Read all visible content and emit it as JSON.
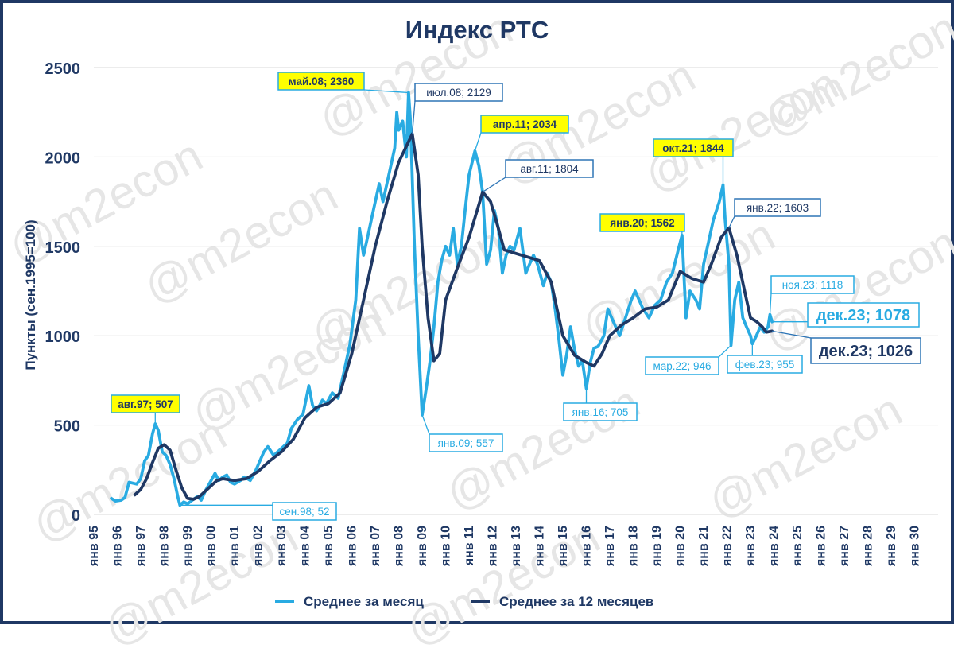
{
  "watermark": "@m2econ",
  "chart_data": {
    "type": "line",
    "title": "Индекс РТС",
    "ylabel": "Пункты (сен.1995=100)",
    "ylim": [
      0,
      2500
    ],
    "yticks": [
      "0",
      "500",
      "1000",
      "1500",
      "2000",
      "2500"
    ],
    "xlim": [
      1995,
      2031
    ],
    "xticks": [
      "янв 95",
      "янв 96",
      "янв 97",
      "янв 98",
      "янв 99",
      "янв 00",
      "янв 01",
      "янв 02",
      "янв 03",
      "янв 04",
      "янв 05",
      "янв 06",
      "янв 07",
      "янв 08",
      "янв 09",
      "янв 10",
      "янв 11",
      "янв 12",
      "янв 13",
      "янв 14",
      "янв 15",
      "янв 16",
      "янв 17",
      "янв 18",
      "янв 19",
      "янв 20",
      "янв 21",
      "янв 22",
      "янв 23",
      "янв 24",
      "янв 25",
      "янв 26",
      "янв 27",
      "янв 28",
      "янв 29",
      "янв 30"
    ],
    "grid": true,
    "legend_position": "bottom",
    "colors": {
      "monthly": "#29abe2",
      "annual": "#1f3864",
      "highlight": "#ffff00",
      "axis_text": "#1f3864"
    },
    "series": [
      {
        "name": "Среднее за месяц",
        "points": [
          [
            1995.75,
            90
          ],
          [
            1995.92,
            75
          ],
          [
            1996.17,
            80
          ],
          [
            1996.33,
            95
          ],
          [
            1996.5,
            180
          ],
          [
            1996.67,
            175
          ],
          [
            1996.83,
            170
          ],
          [
            1997.0,
            200
          ],
          [
            1997.17,
            300
          ],
          [
            1997.33,
            330
          ],
          [
            1997.5,
            450
          ],
          [
            1997.62,
            507
          ],
          [
            1997.75,
            470
          ],
          [
            1997.92,
            350
          ],
          [
            1998.08,
            330
          ],
          [
            1998.25,
            280
          ],
          [
            1998.42,
            200
          ],
          [
            1998.58,
            100
          ],
          [
            1998.67,
            52
          ],
          [
            1998.83,
            70
          ],
          [
            1999.0,
            60
          ],
          [
            1999.25,
            85
          ],
          [
            1999.42,
            100
          ],
          [
            1999.58,
            80
          ],
          [
            1999.75,
            130
          ],
          [
            1999.92,
            170
          ],
          [
            2000.17,
            230
          ],
          [
            2000.33,
            190
          ],
          [
            2000.5,
            210
          ],
          [
            2000.67,
            220
          ],
          [
            2000.83,
            180
          ],
          [
            2001.0,
            170
          ],
          [
            2001.25,
            190
          ],
          [
            2001.42,
            210
          ],
          [
            2001.67,
            190
          ],
          [
            2001.92,
            250
          ],
          [
            2002.25,
            350
          ],
          [
            2002.42,
            380
          ],
          [
            2002.67,
            330
          ],
          [
            2002.92,
            360
          ],
          [
            2003.25,
            400
          ],
          [
            2003.42,
            480
          ],
          [
            2003.67,
            530
          ],
          [
            2003.92,
            560
          ],
          [
            2004.17,
            720
          ],
          [
            2004.33,
            610
          ],
          [
            2004.5,
            580
          ],
          [
            2004.75,
            640
          ],
          [
            2004.92,
            620
          ],
          [
            2005.17,
            680
          ],
          [
            2005.42,
            650
          ],
          [
            2005.67,
            800
          ],
          [
            2005.92,
            950
          ],
          [
            2006.17,
            1200
          ],
          [
            2006.33,
            1600
          ],
          [
            2006.5,
            1450
          ],
          [
            2006.67,
            1550
          ],
          [
            2006.92,
            1700
          ],
          [
            2007.17,
            1850
          ],
          [
            2007.33,
            1750
          ],
          [
            2007.58,
            1900
          ],
          [
            2007.83,
            2050
          ],
          [
            2007.92,
            2250
          ],
          [
            2008.0,
            2150
          ],
          [
            2008.17,
            2200
          ],
          [
            2008.33,
            2000
          ],
          [
            2008.42,
            2360
          ],
          [
            2008.5,
            2200
          ],
          [
            2008.67,
            1500
          ],
          [
            2008.83,
            1000
          ],
          [
            2009.0,
            557
          ],
          [
            2009.17,
            700
          ],
          [
            2009.33,
            850
          ],
          [
            2009.5,
            1050
          ],
          [
            2009.67,
            1300
          ],
          [
            2009.83,
            1420
          ],
          [
            2010.0,
            1500
          ],
          [
            2010.17,
            1450
          ],
          [
            2010.33,
            1600
          ],
          [
            2010.5,
            1400
          ],
          [
            2010.67,
            1500
          ],
          [
            2010.83,
            1700
          ],
          [
            2011.0,
            1900
          ],
          [
            2011.25,
            2034
          ],
          [
            2011.42,
            1950
          ],
          [
            2011.58,
            1800
          ],
          [
            2011.75,
            1400
          ],
          [
            2011.92,
            1480
          ],
          [
            2012.08,
            1700
          ],
          [
            2012.25,
            1600
          ],
          [
            2012.42,
            1350
          ],
          [
            2012.58,
            1450
          ],
          [
            2012.75,
            1500
          ],
          [
            2012.92,
            1480
          ],
          [
            2013.17,
            1600
          ],
          [
            2013.42,
            1350
          ],
          [
            2013.58,
            1400
          ],
          [
            2013.75,
            1450
          ],
          [
            2013.92,
            1400
          ],
          [
            2014.17,
            1280
          ],
          [
            2014.33,
            1350
          ],
          [
            2014.5,
            1300
          ],
          [
            2014.67,
            1150
          ],
          [
            2014.83,
            980
          ],
          [
            2015.0,
            780
          ],
          [
            2015.17,
            900
          ],
          [
            2015.33,
            1050
          ],
          [
            2015.5,
            920
          ],
          [
            2015.67,
            830
          ],
          [
            2015.83,
            860
          ],
          [
            2016.0,
            705
          ],
          [
            2016.17,
            850
          ],
          [
            2016.33,
            930
          ],
          [
            2016.5,
            940
          ],
          [
            2016.75,
            1000
          ],
          [
            2016.92,
            1150
          ],
          [
            2017.08,
            1100
          ],
          [
            2017.25,
            1050
          ],
          [
            2017.42,
            1000
          ],
          [
            2017.67,
            1100
          ],
          [
            2017.92,
            1200
          ],
          [
            2018.08,
            1250
          ],
          [
            2018.25,
            1200
          ],
          [
            2018.42,
            1150
          ],
          [
            2018.67,
            1100
          ],
          [
            2018.92,
            1170
          ],
          [
            2019.17,
            1200
          ],
          [
            2019.42,
            1300
          ],
          [
            2019.67,
            1350
          ],
          [
            2019.92,
            1480
          ],
          [
            2020.08,
            1562
          ],
          [
            2020.25,
            1100
          ],
          [
            2020.42,
            1250
          ],
          [
            2020.67,
            1200
          ],
          [
            2020.83,
            1150
          ],
          [
            2021.0,
            1400
          ],
          [
            2021.17,
            1500
          ],
          [
            2021.42,
            1650
          ],
          [
            2021.67,
            1750
          ],
          [
            2021.83,
            1844
          ],
          [
            2021.92,
            1650
          ],
          [
            2022.08,
            1400
          ],
          [
            2022.17,
            946
          ],
          [
            2022.33,
            1200
          ],
          [
            2022.5,
            1300
          ],
          [
            2022.67,
            1100
          ],
          [
            2022.83,
            1050
          ],
          [
            2023.0,
            1000
          ],
          [
            2023.08,
            955
          ],
          [
            2023.25,
            1000
          ],
          [
            2023.42,
            1050
          ],
          [
            2023.58,
            1020
          ],
          [
            2023.75,
            1050
          ],
          [
            2023.83,
            1118
          ],
          [
            2023.92,
            1078
          ]
        ]
      },
      {
        "name": "Среднее за 12 месяцев",
        "points": [
          [
            1996.75,
            110
          ],
          [
            1997.0,
            140
          ],
          [
            1997.25,
            200
          ],
          [
            1997.5,
            290
          ],
          [
            1997.75,
            370
          ],
          [
            1998.0,
            390
          ],
          [
            1998.25,
            360
          ],
          [
            1998.5,
            250
          ],
          [
            1998.75,
            150
          ],
          [
            1999.0,
            90
          ],
          [
            1999.25,
            85
          ],
          [
            1999.5,
            100
          ],
          [
            1999.75,
            130
          ],
          [
            2000.0,
            160
          ],
          [
            2000.25,
            190
          ],
          [
            2000.5,
            200
          ],
          [
            2000.75,
            195
          ],
          [
            2001.0,
            190
          ],
          [
            2001.5,
            200
          ],
          [
            2002.0,
            240
          ],
          [
            2002.5,
            300
          ],
          [
            2003.0,
            350
          ],
          [
            2003.5,
            420
          ],
          [
            2004.0,
            540
          ],
          [
            2004.5,
            600
          ],
          [
            2005.0,
            620
          ],
          [
            2005.5,
            680
          ],
          [
            2006.0,
            900
          ],
          [
            2006.5,
            1200
          ],
          [
            2007.0,
            1500
          ],
          [
            2007.5,
            1750
          ],
          [
            2008.0,
            1970
          ],
          [
            2008.58,
            2129
          ],
          [
            2008.83,
            1900
          ],
          [
            2009.0,
            1500
          ],
          [
            2009.25,
            1100
          ],
          [
            2009.5,
            860
          ],
          [
            2009.75,
            900
          ],
          [
            2010.0,
            1200
          ],
          [
            2010.5,
            1380
          ],
          [
            2011.0,
            1550
          ],
          [
            2011.58,
            1804
          ],
          [
            2011.92,
            1750
          ],
          [
            2012.25,
            1600
          ],
          [
            2012.5,
            1480
          ],
          [
            2013.0,
            1460
          ],
          [
            2013.5,
            1440
          ],
          [
            2014.0,
            1420
          ],
          [
            2014.5,
            1300
          ],
          [
            2015.0,
            1000
          ],
          [
            2015.5,
            890
          ],
          [
            2016.0,
            850
          ],
          [
            2016.33,
            830
          ],
          [
            2016.67,
            900
          ],
          [
            2017.0,
            1000
          ],
          [
            2017.5,
            1060
          ],
          [
            2018.0,
            1100
          ],
          [
            2018.5,
            1150
          ],
          [
            2019.0,
            1160
          ],
          [
            2019.5,
            1200
          ],
          [
            2020.0,
            1360
          ],
          [
            2020.5,
            1320
          ],
          [
            2021.0,
            1300
          ],
          [
            2021.33,
            1400
          ],
          [
            2021.75,
            1550
          ],
          [
            2022.08,
            1603
          ],
          [
            2022.42,
            1450
          ],
          [
            2022.75,
            1250
          ],
          [
            2023.0,
            1100
          ],
          [
            2023.25,
            1080
          ],
          [
            2023.5,
            1050
          ],
          [
            2023.67,
            1020
          ],
          [
            2023.92,
            1026
          ]
        ]
      }
    ],
    "annotations": [
      {
        "label": "авг.97; 507",
        "x": 1997.62,
        "y": 507,
        "series": "Среднее за месяц",
        "highlight": true,
        "size": "normal"
      },
      {
        "label": "сен.98; 52",
        "x": 1998.67,
        "y": 52,
        "series": "Среднее за месяц",
        "highlight": false,
        "size": "normal"
      },
      {
        "label": "май.08; 2360",
        "x": 2008.42,
        "y": 2360,
        "series": "Среднее за месяц",
        "highlight": true,
        "size": "normal"
      },
      {
        "label": "июл.08; 2129",
        "x": 2008.58,
        "y": 2129,
        "series": "Среднее за 12 месяцев",
        "highlight": false,
        "size": "normal"
      },
      {
        "label": "янв.09; 557",
        "x": 2009.0,
        "y": 557,
        "series": "Среднее за месяц",
        "highlight": false,
        "size": "normal"
      },
      {
        "label": "апр.11; 2034",
        "x": 2011.25,
        "y": 2034,
        "series": "Среднее за месяц",
        "highlight": true,
        "size": "normal"
      },
      {
        "label": "авг.11; 1804",
        "x": 2011.58,
        "y": 1804,
        "series": "Среднее за 12 месяцев",
        "highlight": false,
        "size": "normal"
      },
      {
        "label": "янв.16; 705",
        "x": 2016.0,
        "y": 705,
        "series": "Среднее за месяц",
        "highlight": false,
        "size": "normal"
      },
      {
        "label": "янв.20; 1562",
        "x": 2020.08,
        "y": 1562,
        "series": "Среднее за месяц",
        "highlight": true,
        "size": "normal"
      },
      {
        "label": "окт.21; 1844",
        "x": 2021.83,
        "y": 1844,
        "series": "Среднее за месяц",
        "highlight": true,
        "size": "normal"
      },
      {
        "label": "янв.22; 1603",
        "x": 2022.08,
        "y": 1603,
        "series": "Среднее за 12 месяцев",
        "highlight": false,
        "size": "normal"
      },
      {
        "label": "мар.22; 946",
        "x": 2022.17,
        "y": 946,
        "series": "Среднее за месяц",
        "highlight": false,
        "size": "normal"
      },
      {
        "label": "фев.23; 955",
        "x": 2023.08,
        "y": 955,
        "series": "Среднее за месяц",
        "highlight": false,
        "size": "normal"
      },
      {
        "label": "ноя.23; 1118",
        "x": 2023.83,
        "y": 1118,
        "series": "Среднее за месяц",
        "highlight": false,
        "size": "normal"
      },
      {
        "label": "дек.23; 1078",
        "x": 2023.92,
        "y": 1078,
        "series": "Среднее за месяц",
        "highlight": false,
        "size": "large"
      },
      {
        "label": "дек.23; 1026",
        "x": 2023.92,
        "y": 1026,
        "series": "Среднее за 12 месяцев",
        "highlight": false,
        "size": "large"
      }
    ]
  }
}
